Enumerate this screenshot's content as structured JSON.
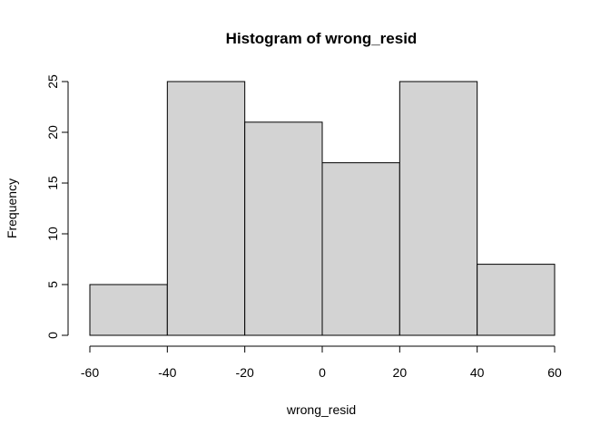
{
  "chart_data": {
    "type": "bar",
    "title": "Histogram of wrong_resid",
    "xlabel": "wrong_resid",
    "ylabel": "Frequency",
    "bins": [
      {
        "start": -60,
        "end": -40,
        "count": 5
      },
      {
        "start": -40,
        "end": -20,
        "count": 25
      },
      {
        "start": -20,
        "end": 0,
        "count": 21
      },
      {
        "start": 0,
        "end": 20,
        "count": 17
      },
      {
        "start": 20,
        "end": 40,
        "count": 25
      },
      {
        "start": 40,
        "end": 60,
        "count": 7
      }
    ],
    "xticks": [
      -60,
      -40,
      -20,
      0,
      20,
      40,
      60
    ],
    "yticks": [
      0,
      5,
      10,
      15,
      20,
      25
    ],
    "xlim": [
      -60,
      60
    ],
    "ylim": [
      0,
      25
    ],
    "bar_fill": "#d3d3d3",
    "bar_stroke": "#000000",
    "grid": false
  }
}
